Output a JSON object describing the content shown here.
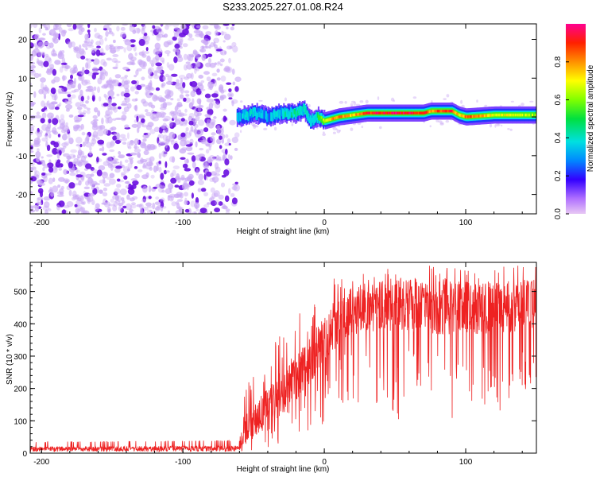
{
  "title": "S233.2025.227.01.08.R24",
  "colors": {
    "snr_line": "#ee2222",
    "purple_dark": "#6a10e0",
    "purple_light": "#c9a8f5"
  },
  "chart_data": [
    {
      "type": "heatmap",
      "name": "spectrogram",
      "xlabel": "Height of straight line (km)",
      "ylabel": "Frequency (Hz)",
      "xlim": [
        -208,
        150
      ],
      "ylim": [
        -25,
        24
      ],
      "xticks": [
        -200,
        -100,
        0,
        100
      ],
      "xtick_labels": [
        "-200",
        "-100",
        "0",
        "100"
      ],
      "yticks": [
        -20,
        -10,
        0,
        10,
        20
      ],
      "ytick_labels": [
        "-20",
        "-10",
        "0",
        "10",
        "20"
      ],
      "noise_region_x": [
        -208,
        -60
      ],
      "signal_track": {
        "x": [
          -60,
          -50,
          -40,
          -30,
          -20,
          -15,
          -10,
          -5,
          0,
          10,
          20,
          30,
          50,
          70,
          75,
          80,
          90,
          95,
          100,
          120,
          150
        ],
        "freq_hz": [
          0,
          1,
          0,
          1,
          1,
          2,
          -1,
          0,
          -1,
          0,
          0.5,
          1,
          1,
          1,
          1.5,
          1.5,
          1.5,
          0.5,
          0,
          0.5,
          0.5
        ],
        "amplitude": [
          0.3,
          0.35,
          0.3,
          0.35,
          0.45,
          0.4,
          0.35,
          0.45,
          0.7,
          0.85,
          0.75,
          0.9,
          0.95,
          0.9,
          0.8,
          0.85,
          0.9,
          0.7,
          0.85,
          0.7,
          0.6
        ]
      },
      "colorbar": {
        "label": "Normalized spectral amplitude",
        "range": [
          0,
          1
        ],
        "ticks": [
          0.0,
          0.2,
          0.4,
          0.6,
          0.8
        ],
        "tick_labels": [
          "0.0",
          "0.2",
          "0.4",
          "0.6",
          "0.8"
        ]
      }
    },
    {
      "type": "line",
      "name": "snr",
      "xlabel": "Height of straight line (km)",
      "ylabel": "SNR (10 * v/v)",
      "xlim": [
        -208,
        150
      ],
      "ylim": [
        0,
        590
      ],
      "xticks": [
        -200,
        -100,
        0,
        100
      ],
      "xtick_labels": [
        "-200",
        "-100",
        "0",
        "100"
      ],
      "yticks": [
        0,
        100,
        200,
        300,
        400,
        500
      ],
      "ytick_labels": [
        "0",
        "100",
        "200",
        "300",
        "400",
        "500"
      ],
      "series": [
        {
          "name": "SNR",
          "envelope_x": [
            -208,
            -60,
            -55,
            -45,
            -30,
            -20,
            -10,
            0,
            10,
            20,
            30,
            40,
            60,
            80,
            100,
            120,
            150
          ],
          "envelope_mean": [
            15,
            15,
            80,
            120,
            180,
            230,
            280,
            360,
            410,
            440,
            450,
            460,
            460,
            450,
            450,
            450,
            460
          ],
          "envelope_max": [
            35,
            40,
            250,
            330,
            380,
            430,
            470,
            520,
            560,
            570,
            570,
            570,
            580,
            580,
            570,
            580,
            580
          ],
          "envelope_min": [
            2,
            2,
            5,
            10,
            20,
            40,
            60,
            90,
            120,
            150,
            120,
            110,
            100,
            90,
            100,
            120,
            130
          ]
        }
      ]
    }
  ]
}
